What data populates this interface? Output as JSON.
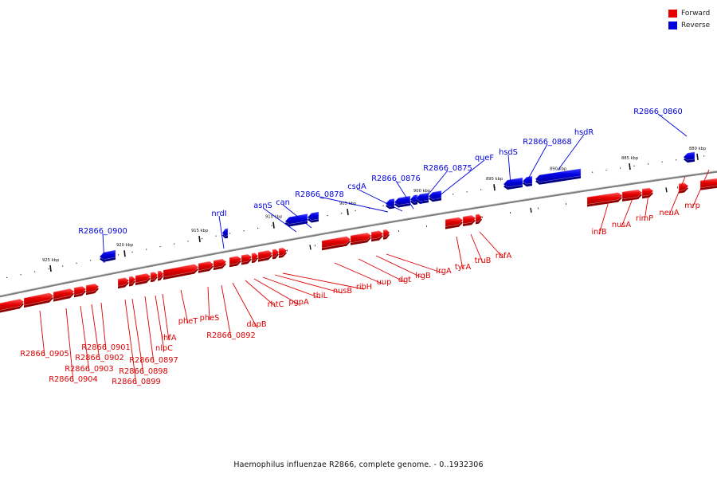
{
  "legend": {
    "forward": {
      "label": "Forward",
      "color": "#e60000"
    },
    "reverse": {
      "label": "Reverse",
      "color": "#0000dd"
    }
  },
  "caption": "Haemophilus influenzae R2866, complete genome. - 0..1932306",
  "axis_ticks": [
    "925 kbp",
    "920 kbp",
    "915 kbp",
    "910 kbp",
    "905 kbp",
    "900 kbp",
    "895 kbp",
    "890 kbp",
    "885 kbp",
    "880 kbp"
  ],
  "reverse_genes": [
    "R2866_0900",
    "nrdI",
    "asnS",
    "can",
    "R2866_0878",
    "csdA",
    "R2866_0876",
    "R2866_0875",
    "queF",
    "hsdS",
    "R2866_0868",
    "hsdR",
    "R2866_0860"
  ],
  "forward_genes": [
    "R2866_0905",
    "R2866_0904",
    "R2866_0903",
    "R2866_0902",
    "R2866_0901",
    "R2866_0899",
    "R2866_0898",
    "R2866_0897",
    "nlpC",
    "ihfA",
    "pheT",
    "pheS",
    "R2866_0892",
    "dapB",
    "rhtC",
    "pgpA",
    "thiL",
    "nusB",
    "ribH",
    "uup",
    "dgt",
    "lrgB",
    "lrgA",
    "tyrA",
    "truB",
    "rbfA",
    "infB",
    "nusA",
    "rimP",
    "neuA",
    "mrp"
  ]
}
